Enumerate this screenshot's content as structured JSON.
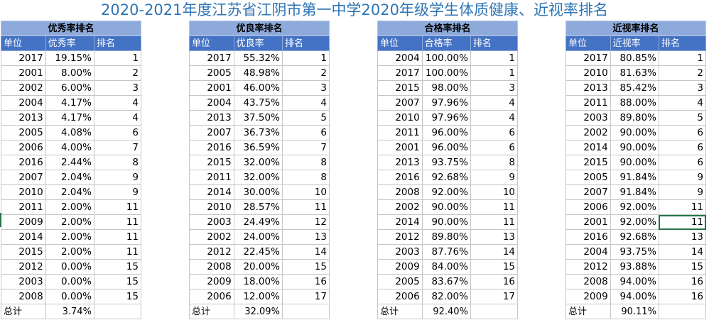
{
  "title": "2020-2021年度江苏省江阴市第一中学2020年级学生体质健康、近视率排名",
  "tables": [
    {
      "caption": "优秀率排名",
      "headers": [
        "单位",
        "优秀率",
        "排名"
      ],
      "rows": [
        [
          "2017",
          "19.15%",
          "1"
        ],
        [
          "2001",
          "8.00%",
          "2"
        ],
        [
          "2002",
          "6.00%",
          "3"
        ],
        [
          "2004",
          "4.17%",
          "4"
        ],
        [
          "2013",
          "4.17%",
          "4"
        ],
        [
          "2005",
          "4.08%",
          "6"
        ],
        [
          "2006",
          "4.00%",
          "7"
        ],
        [
          "2016",
          "2.44%",
          "8"
        ],
        [
          "2007",
          "2.04%",
          "9"
        ],
        [
          "2010",
          "2.04%",
          "9"
        ],
        [
          "2011",
          "2.00%",
          "11"
        ],
        [
          "2009",
          "2.00%",
          "11"
        ],
        [
          "2014",
          "2.00%",
          "11"
        ],
        [
          "2015",
          "2.00%",
          "11"
        ],
        [
          "2012",
          "0.00%",
          "15"
        ],
        [
          "2003",
          "0.00%",
          "15"
        ],
        [
          "2008",
          "0.00%",
          "15"
        ]
      ],
      "total": [
        "总计",
        "3.74%",
        ""
      ]
    },
    {
      "caption": "优良率排名",
      "headers": [
        "单位",
        "优良率",
        "排名"
      ],
      "rows": [
        [
          "2017",
          "55.32%",
          "1"
        ],
        [
          "2005",
          "48.98%",
          "2"
        ],
        [
          "2001",
          "46.00%",
          "3"
        ],
        [
          "2004",
          "43.75%",
          "4"
        ],
        [
          "2013",
          "37.50%",
          "5"
        ],
        [
          "2007",
          "36.73%",
          "6"
        ],
        [
          "2016",
          "36.59%",
          "7"
        ],
        [
          "2015",
          "32.00%",
          "8"
        ],
        [
          "2011",
          "32.00%",
          "8"
        ],
        [
          "2014",
          "30.00%",
          "10"
        ],
        [
          "2010",
          "28.57%",
          "11"
        ],
        [
          "2003",
          "24.49%",
          "12"
        ],
        [
          "2002",
          "24.00%",
          "13"
        ],
        [
          "2012",
          "22.45%",
          "14"
        ],
        [
          "2008",
          "20.00%",
          "15"
        ],
        [
          "2009",
          "18.00%",
          "16"
        ],
        [
          "2006",
          "12.00%",
          "17"
        ]
      ],
      "total": [
        "总计",
        "32.09%",
        ""
      ]
    },
    {
      "caption": "合格率排名",
      "headers": [
        "单位",
        "合格率",
        "排名"
      ],
      "rows": [
        [
          "2004",
          "100.00%",
          "1"
        ],
        [
          "2017",
          "100.00%",
          "1"
        ],
        [
          "2015",
          "98.00%",
          "3"
        ],
        [
          "2007",
          "97.96%",
          "4"
        ],
        [
          "2010",
          "97.96%",
          "4"
        ],
        [
          "2011",
          "96.00%",
          "6"
        ],
        [
          "2001",
          "96.00%",
          "6"
        ],
        [
          "2013",
          "93.75%",
          "8"
        ],
        [
          "2016",
          "92.68%",
          "9"
        ],
        [
          "2008",
          "92.00%",
          "10"
        ],
        [
          "2002",
          "90.00%",
          "11"
        ],
        [
          "2014",
          "90.00%",
          "11"
        ],
        [
          "2012",
          "89.80%",
          "13"
        ],
        [
          "2003",
          "87.76%",
          "14"
        ],
        [
          "2009",
          "84.00%",
          "15"
        ],
        [
          "2005",
          "83.67%",
          "16"
        ],
        [
          "2006",
          "82.00%",
          "17"
        ]
      ],
      "total": [
        "总计",
        "92.40%",
        ""
      ]
    },
    {
      "caption": "近视率排名",
      "headers": [
        "单位",
        "近视率",
        "排名"
      ],
      "rows": [
        [
          "2017",
          "80.85%",
          "1"
        ],
        [
          "2010",
          "81.63%",
          "2"
        ],
        [
          "2013",
          "85.42%",
          "3"
        ],
        [
          "2011",
          "88.00%",
          "4"
        ],
        [
          "2003",
          "89.80%",
          "5"
        ],
        [
          "2002",
          "90.00%",
          "6"
        ],
        [
          "2014",
          "90.00%",
          "6"
        ],
        [
          "2015",
          "90.00%",
          "6"
        ],
        [
          "2005",
          "91.84%",
          "9"
        ],
        [
          "2007",
          "91.84%",
          "9"
        ],
        [
          "2006",
          "92.00%",
          "11"
        ],
        [
          "2001",
          "92.00%",
          "11"
        ],
        [
          "2016",
          "92.68%",
          "13"
        ],
        [
          "2004",
          "93.75%",
          "14"
        ],
        [
          "2012",
          "93.88%",
          "15"
        ],
        [
          "2008",
          "94.00%",
          "16"
        ],
        [
          "2009",
          "94.00%",
          "16"
        ]
      ],
      "total": [
        "总计",
        "90.11%",
        ""
      ]
    }
  ],
  "selection": {
    "table": 3,
    "row": 11,
    "col": 2
  },
  "colors": {
    "caption_bg": "#8eaadb",
    "header_bg": "#4472c4",
    "title": "#2e75b6",
    "selection": "#217346"
  }
}
